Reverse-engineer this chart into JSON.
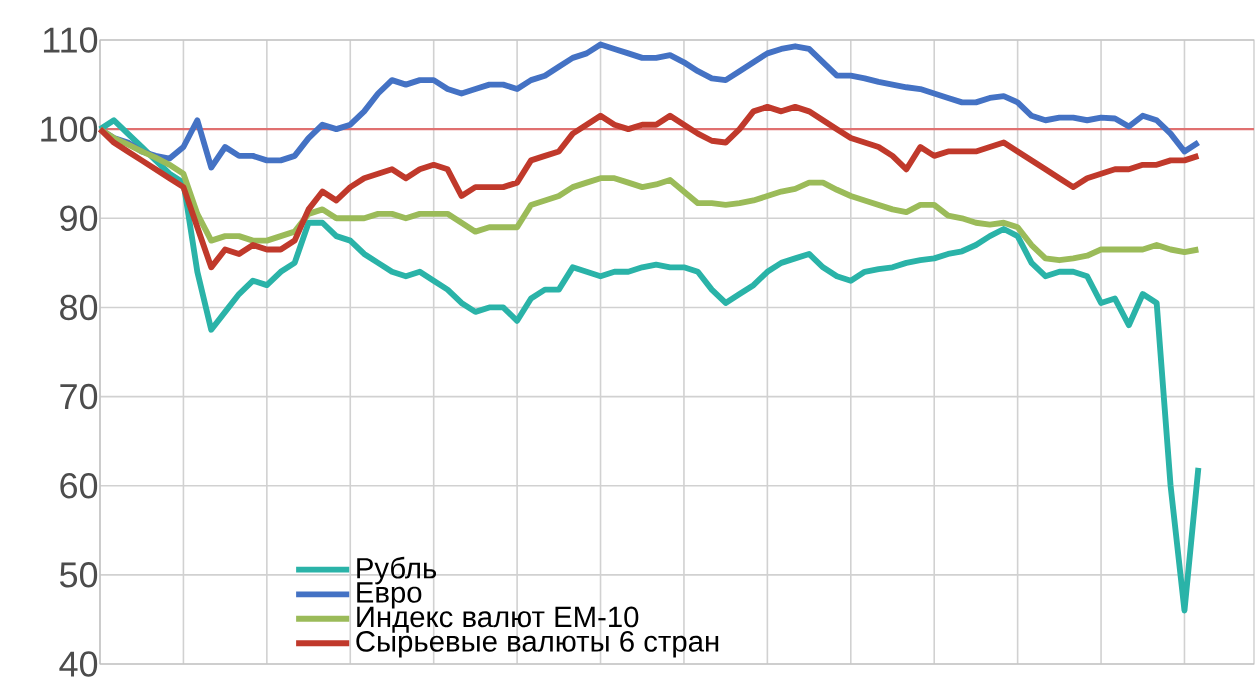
{
  "chart_data": {
    "type": "line",
    "categories": [
      null,
      null,
      null,
      null,
      null,
      null,
      null,
      null,
      null,
      null,
      null,
      null,
      null,
      null,
      null,
      null,
      null,
      null,
      null,
      null,
      null,
      null,
      null,
      null,
      null,
      null,
      null,
      null,
      null,
      null,
      null,
      null,
      null,
      null,
      null,
      null,
      null,
      null,
      null,
      null,
      null,
      null,
      null,
      null,
      null,
      null,
      null,
      null,
      null,
      null,
      null,
      null,
      null,
      null,
      null,
      null,
      null,
      null,
      null,
      null,
      null,
      null,
      null,
      null,
      null,
      null,
      null,
      null,
      null,
      null,
      null,
      null,
      null,
      null,
      null,
      null,
      null,
      null,
      null,
      null,
      null,
      null,
      null,
      null
    ],
    "ylim": [
      40,
      110
    ],
    "yticks": [
      40,
      50,
      60,
      70,
      80,
      90,
      100,
      110
    ],
    "grid": true,
    "legend": "bottom left",
    "tick_labels": "y",
    "ref_lines": [
      {
        "axis": "y",
        "value": 100,
        "color": "#e07070"
      }
    ],
    "series": [
      {
        "name": "Рубль",
        "color": "#2ab3a8",
        "values": [
          100,
          101,
          99.5,
          98,
          96.5,
          95,
          94,
          84,
          77.5,
          79.5,
          81.5,
          83,
          82.5,
          84,
          85,
          89.5,
          89.5,
          88,
          87.5,
          86,
          85,
          84,
          83.5,
          84,
          83,
          82,
          80.5,
          79.5,
          80,
          80,
          78.5,
          81,
          82,
          82,
          84.5,
          84,
          83.5,
          84,
          84,
          84.5,
          84.8,
          84.5,
          84.5,
          84,
          82,
          80.5,
          81.5,
          82.5,
          84,
          85,
          85.5,
          86,
          84.5,
          83.5,
          83,
          84,
          84.3,
          84.5,
          85,
          85.3,
          85.5,
          86,
          86.3,
          87,
          88,
          88.8,
          88,
          85,
          83.5,
          84,
          84,
          83.5,
          80.5,
          81,
          78,
          81.5,
          80.5,
          60,
          46,
          62,
          null,
          null,
          null,
          null
        ]
      },
      {
        "name": "Евро",
        "color": "#4472c4",
        "values": [
          100,
          99,
          98.5,
          97.5,
          97,
          96.7,
          98,
          101,
          95.7,
          98,
          97,
          97,
          96.5,
          96.5,
          97,
          99,
          100.5,
          100,
          100.5,
          102,
          104,
          105.5,
          105,
          105.5,
          105.5,
          104.5,
          104,
          104.5,
          105,
          105,
          104.5,
          105.5,
          106,
          107,
          108,
          108.5,
          109.5,
          109,
          108.5,
          108,
          108,
          108.3,
          107.5,
          106.5,
          105.7,
          105.5,
          106.5,
          107.5,
          108.5,
          109,
          109.3,
          109,
          107.5,
          106,
          106,
          105.7,
          105.3,
          105,
          104.7,
          104.5,
          104,
          103.5,
          103,
          103,
          103.5,
          103.7,
          103,
          101.5,
          101,
          101.3,
          101.3,
          101,
          101.3,
          101.2,
          100.3,
          101.5,
          101,
          99.5,
          97.5,
          98.5,
          null,
          null,
          null,
          null
        ]
      },
      {
        "name": "Индекс валют EM-10",
        "color": "#9bbb59",
        "values": [
          100,
          99,
          98.3,
          97.5,
          96.8,
          96,
          95,
          90.5,
          87.5,
          88,
          88,
          87.5,
          87.5,
          88,
          88.5,
          90.5,
          91,
          90,
          90,
          90,
          90.5,
          90.5,
          90,
          90.5,
          90.5,
          90.5,
          89.5,
          88.5,
          89,
          89,
          89,
          91.5,
          92,
          92.5,
          93.5,
          94,
          94.5,
          94.5,
          94,
          93.5,
          93.8,
          94.3,
          93,
          91.7,
          91.7,
          91.5,
          91.7,
          92,
          92.5,
          93,
          93.3,
          94,
          94,
          93.2,
          92.5,
          92,
          91.5,
          91,
          90.7,
          91.5,
          91.5,
          90.3,
          90,
          89.5,
          89.3,
          89.5,
          89,
          87,
          85.5,
          85.3,
          85.5,
          85.8,
          86.5,
          86.5,
          86.5,
          86.5,
          87,
          86.5,
          86.2,
          86.5,
          null,
          null,
          null,
          null
        ]
      },
      {
        "name": "Сырьевые валюты 6 стран",
        "color": "#c0392b",
        "values": [
          100,
          98.5,
          97.5,
          96.5,
          95.5,
          94.5,
          93.5,
          89,
          84.5,
          86.5,
          86,
          87,
          86.5,
          86.5,
          87.5,
          91,
          93,
          92,
          93.5,
          94.5,
          95,
          95.5,
          94.5,
          95.5,
          96,
          95.5,
          92.5,
          93.5,
          93.5,
          93.5,
          94,
          96.5,
          97,
          97.5,
          99.5,
          100.5,
          101.5,
          100.5,
          100,
          100.5,
          100.5,
          101.5,
          100.5,
          99.5,
          98.7,
          98.5,
          100,
          102,
          102.5,
          102,
          102.5,
          102,
          101,
          100,
          99,
          98.5,
          98,
          97,
          95.5,
          98,
          97,
          97.5,
          97.5,
          97.5,
          98,
          98.5,
          97.5,
          96.5,
          95.5,
          94.5,
          93.5,
          94.5,
          95,
          95.5,
          95.5,
          96,
          96,
          96.5,
          96.5,
          97,
          null,
          null,
          null,
          null
        ]
      }
    ]
  }
}
